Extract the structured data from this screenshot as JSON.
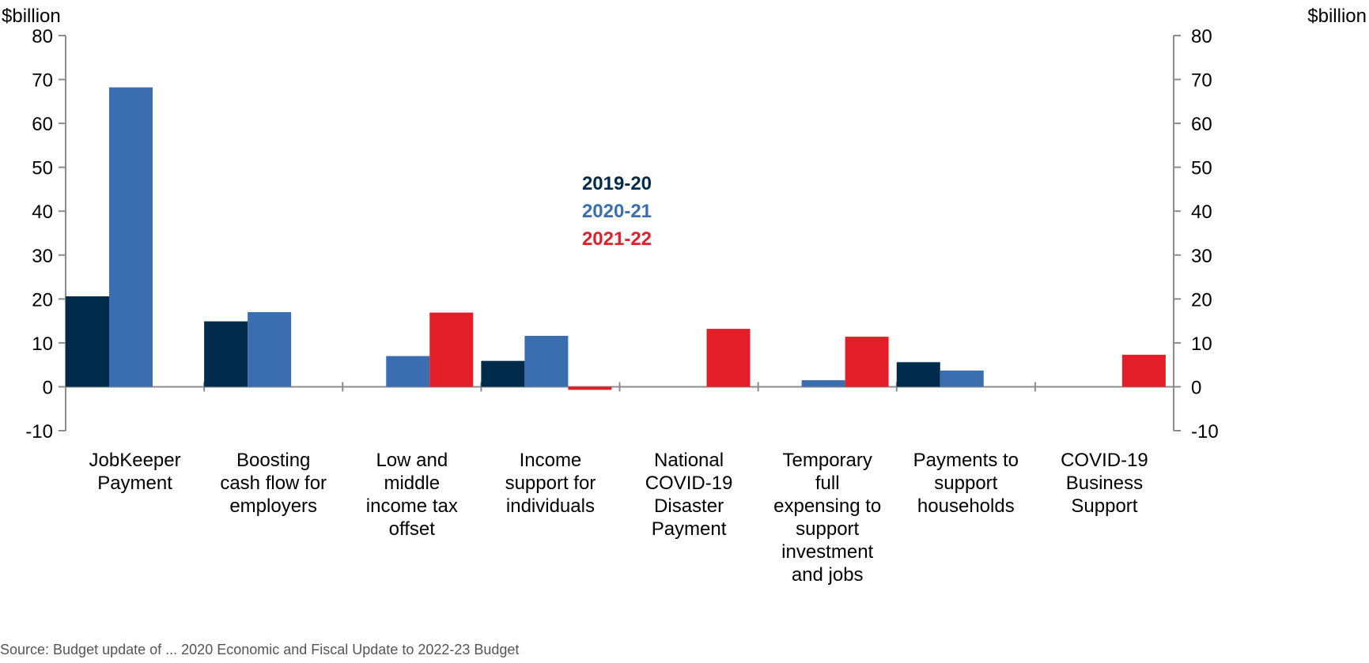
{
  "chart_data": {
    "type": "bar",
    "y_unit_label_left": "$billion",
    "y_unit_label_right": "$billion",
    "ylim": [
      -10,
      80
    ],
    "yticks": [
      -10,
      0,
      10,
      20,
      30,
      40,
      50,
      60,
      70,
      80
    ],
    "grid": false,
    "legend_position": "center",
    "categories": [
      [
        "JobKeeper",
        "Payment"
      ],
      [
        "Boosting",
        "cash flow for",
        "employers"
      ],
      [
        "Low and",
        "middle",
        "income tax",
        "offset"
      ],
      [
        "Income",
        "support for",
        "individuals"
      ],
      [
        "National",
        "COVID-19",
        "Disaster",
        "Payment"
      ],
      [
        "Temporary",
        "full",
        "expensing to",
        "support",
        "investment",
        "and jobs"
      ],
      [
        "Payments to",
        "support",
        "households"
      ],
      [
        "COVID-19",
        "Business",
        "Support"
      ]
    ],
    "series": [
      {
        "name": "2019-20",
        "color": "#002B4A",
        "values": [
          20.6,
          14.9,
          0,
          5.9,
          0,
          0,
          5.6,
          0
        ]
      },
      {
        "name": "2020-21",
        "color": "#3B6EB0",
        "values": [
          68.2,
          17.0,
          7.0,
          11.6,
          0,
          1.5,
          3.7,
          0
        ]
      },
      {
        "name": "2021-22",
        "color": "#E31E28",
        "values": [
          0,
          0,
          16.9,
          -0.7,
          13.2,
          11.4,
          0,
          7.3
        ]
      }
    ]
  },
  "source_text": "Source: Budget update of ... 2020 Economic and Fiscal Update to 2022-23 Budget"
}
